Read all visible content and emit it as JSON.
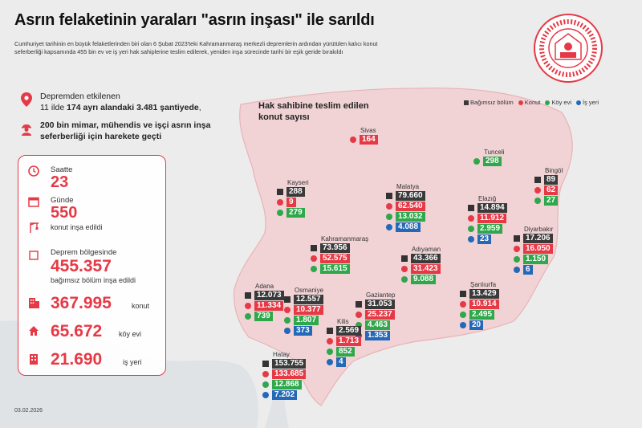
{
  "title": "Asrın felaketinin yaraları \"asrın inşası\" ile sarıldı",
  "intro": "Cumhuriyet tarihinin en büyük felaketlerinden biri olan 6 Şubat 2023'teki Kahramanmaraş merkezli depremlerin ardından yürütülen kalıcı konut seferberliği kapsamında 455 bin ev ve iş yeri hak sahiplerine teslim edilerek, yeniden inşa sürecinde tarihi bir eşik geride bırakıldı",
  "fact1": {
    "line1": "Depremden etkilenen",
    "p1": "11 ilde ",
    "b1": "174 ayrı alandaki 3.481 şantiyede",
    "p2": ","
  },
  "fact2": {
    "line1": "200 bin mimar, mühendis ve işçi asrın inşa",
    "line2": "seferberliği için harekete geçti"
  },
  "panel": {
    "saatte_label": "Saatte",
    "saatte_value": "23",
    "gunde_label": "Günde",
    "gunde_value": "550",
    "gunde_sub": "konut inşa edildi",
    "deprem_label": "Deprem bölgesinde",
    "deprem_value": "455.357",
    "deprem_sub": "bağımsız bölüm inşa edildi",
    "konut_value": "367.995",
    "konut_label": "konut",
    "koy_value": "65.672",
    "koy_label": "köy evi",
    "isyeri_value": "21.690",
    "isyeri_label": "iş yeri"
  },
  "map_title": {
    "line1": "Hak sahibine teslim edilen",
    "line2": "konut sayısı"
  },
  "legend": {
    "bagimsiz": "Bağımsız bölüm",
    "konut": "Konut",
    "koy": "Köy evi",
    "isyeri": "İş yeri"
  },
  "colors": {
    "accent": "#e63946",
    "dark": "#3a3a3a",
    "green": "#2ea84a",
    "blue": "#2468b8"
  },
  "cities": {
    "sivas": {
      "name": "Sivas",
      "konut": "164"
    },
    "tunceli": {
      "name": "Tunceli",
      "koy": "298"
    },
    "kayseri": {
      "name": "Kayseri",
      "bagimsiz": "288",
      "konut": "9",
      "koy": "279"
    },
    "malatya": {
      "name": "Malatya",
      "bagimsiz": "79.660",
      "konut": "62.540",
      "koy": "13.032",
      "isyeri": "4.088"
    },
    "bingol": {
      "name": "Bingöl",
      "bagimsiz": "89",
      "konut": "62",
      "koy": "27"
    },
    "elazig": {
      "name": "Elazığ",
      "bagimsiz": "14.894",
      "konut": "11.912",
      "koy": "2.959",
      "isyeri": "23"
    },
    "diyarbakir": {
      "name": "Diyarbakır",
      "bagimsiz": "17.206",
      "konut": "16.050",
      "koy": "1.150",
      "isyeri": "6"
    },
    "kahramanmaras": {
      "name": "Kahramanmaraş",
      "bagimsiz": "73.956",
      "konut": "52.575",
      "koy": "15.615"
    },
    "adiyaman": {
      "name": "Adıyaman",
      "bagimsiz": "43.366",
      "konut": "31.423",
      "koy": "9.088"
    },
    "adana": {
      "name": "Adana",
      "bagimsiz": "12.073",
      "konut": "11.334",
      "koy": "739"
    },
    "osmaniye": {
      "name": "Osmaniye",
      "bagimsiz": "12.557",
      "konut": "10.377",
      "koy": "1.807",
      "isyeri": "373"
    },
    "gaziantep": {
      "name": "Gaziantep",
      "bagimsiz": "31.053",
      "konut": "25.237",
      "koy": "4.463",
      "isyeri": "1.353"
    },
    "sanliurfa": {
      "name": "Şanlıurfa",
      "bagimsiz": "13.429",
      "konut": "10.914",
      "koy": "2.495",
      "isyeri": "20"
    },
    "kilis": {
      "name": "Kilis",
      "bagimsiz": "2.569",
      "konut": "1.713",
      "koy": "852",
      "isyeri": "4"
    },
    "hatay": {
      "name": "Hatay",
      "bagimsiz": "153.755",
      "konut": "133.685",
      "koy": "12.868",
      "isyeri": "7.202"
    }
  },
  "date": "03.02.2026"
}
